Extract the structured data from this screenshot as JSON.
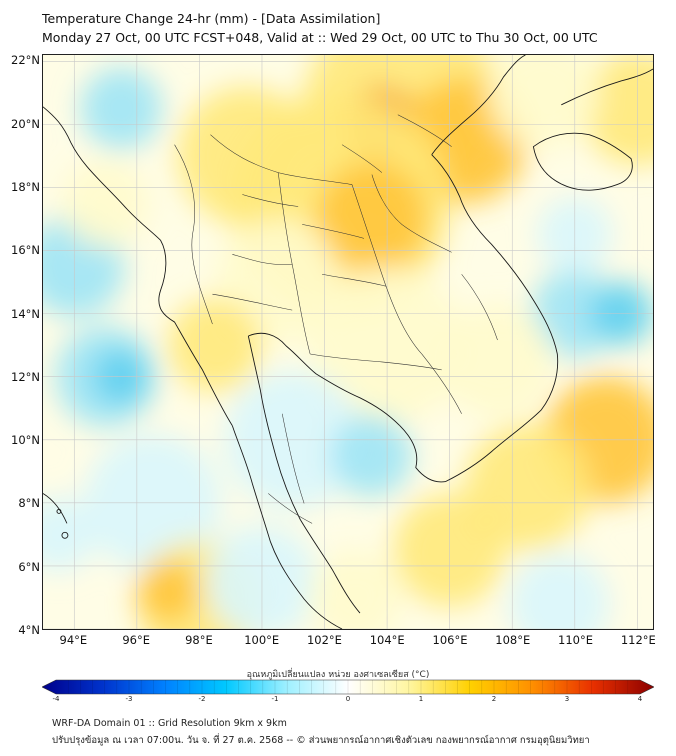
{
  "header": {
    "title": "Temperature Change 24-hr (mm) - [Data Assimilation]",
    "subtitle": "Monday 27 Oct, 00 UTC FCST+048, Valid at :: Wed 29 Oct, 00 UTC to Thu 30 Oct, 00 UTC"
  },
  "axes": {
    "lat_labels": [
      "22°N",
      "20°N",
      "18°N",
      "16°N",
      "14°N",
      "12°N",
      "10°N",
      "8°N",
      "6°N",
      "4°N"
    ],
    "lon_labels": [
      "94°E",
      "96°E",
      "98°E",
      "100°E",
      "102°E",
      "104°E",
      "106°E",
      "108°E",
      "110°E",
      "112°E"
    ]
  },
  "colorbar": {
    "title": "อุณหภูมิเปลี่ยนแปลง หน่วย องศาเซลเซียส (°C)",
    "ticks": [
      "-4",
      "-3",
      "-2",
      "-1",
      "0",
      "1",
      "2",
      "3",
      "4"
    ],
    "min": -4,
    "max": 4,
    "colors": [
      "#00008b",
      "#0033cc",
      "#0080ff",
      "#00c8ff",
      "#9ef0ff",
      "#ffffff",
      "#fff6a0",
      "#ffd000",
      "#ff9000",
      "#e83000",
      "#8b0000"
    ]
  },
  "field_colors": {
    "warm_light": "#fffbcc",
    "warm": "#ffe97a",
    "warm_strong": "#ffc53a",
    "hot": "#f59a2a",
    "cool_light": "#d9f6fc",
    "cool": "#9fe4f5",
    "cool_strong": "#5fd0ef"
  },
  "footer": {
    "line1": "WRF-DA Domain 01 :: Grid Resolution 9km x 9km",
    "line2": "ปรับปรุงข้อมูล ณ เวลา 07:00น. วัน จ. ที่ 27 ต.ค. 2568 -- © ส่วนพยากรณ์อากาศเชิงตัวเลข กองพยากรณ์อากาศ กรมอุตุนิยมวิทยา"
  }
}
